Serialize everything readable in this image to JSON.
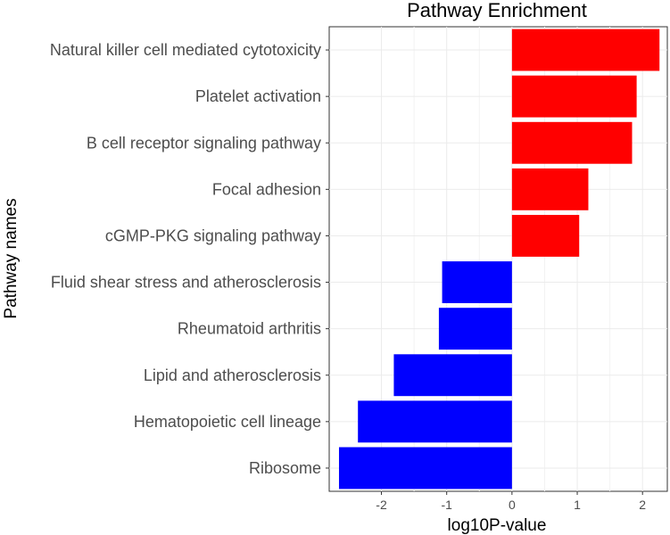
{
  "chart_data": {
    "type": "bar",
    "orientation": "horizontal",
    "title": "Pathway Enrichment",
    "xlabel": "log10P-value",
    "ylabel": "Pathway names",
    "xlim": [
      -2.8,
      2.38
    ],
    "xticks": [
      -2,
      -1,
      0,
      1,
      2
    ],
    "xtick_labels": [
      "-2",
      "-1",
      "0",
      "1",
      "2"
    ],
    "grid": true,
    "positive_color": "#ff0000",
    "negative_color": "#0000ff",
    "categories": [
      "Natural killer cell mediated cytotoxicity",
      "Platelet activation",
      "B cell receptor signaling pathway",
      "Focal adhesion",
      "cGMP-PKG signaling pathway",
      "Fluid shear stress and atherosclerosis",
      "Rheumatoid arthritis",
      "Lipid and atherosclerosis",
      "Hematopoietic cell lineage",
      "Ribosome"
    ],
    "values": [
      2.26,
      1.91,
      1.84,
      1.17,
      1.03,
      -1.07,
      -1.12,
      -1.81,
      -2.36,
      -2.65
    ]
  }
}
